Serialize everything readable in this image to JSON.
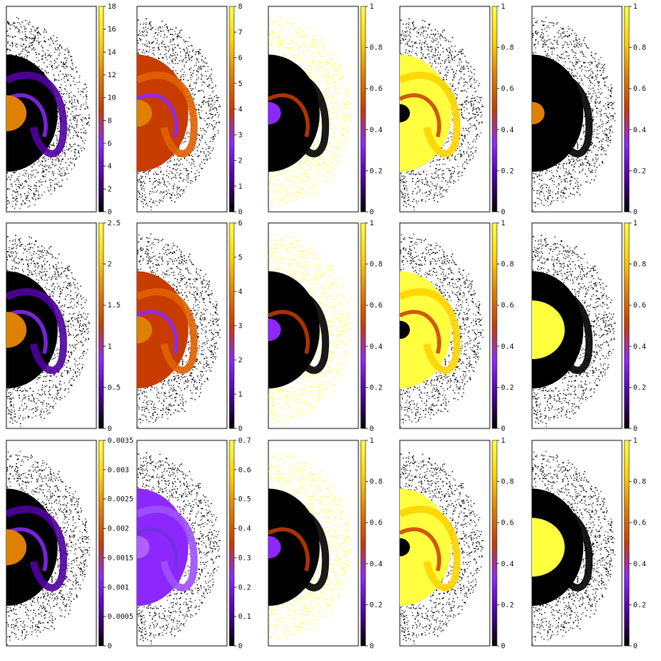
{
  "figure": {
    "rows": 3,
    "cols": 5,
    "colormap": [
      "#000000",
      "#5000a0",
      "#8c28ff",
      "#c83c00",
      "#e08000",
      "#ffd400",
      "#ffff40"
    ]
  },
  "chart_data": [
    {
      "type": "heatmap",
      "panel": "r1c1",
      "colorbar_ticks": [
        "0",
        "2",
        "4",
        "6",
        "8",
        "10",
        "12",
        "14",
        "16",
        "18"
      ],
      "colorbar_range": [
        0,
        18
      ],
      "pattern": "core"
    },
    {
      "type": "heatmap",
      "panel": "r1c2",
      "colorbar_ticks": [
        "0",
        "1",
        "2",
        "3",
        "4",
        "5",
        "6",
        "7",
        "8"
      ],
      "colorbar_range": [
        0,
        8
      ],
      "pattern": "orange-mass"
    },
    {
      "type": "heatmap",
      "panel": "r1c3",
      "colorbar_ticks": [
        "0",
        "0.2",
        "0.4",
        "0.6",
        "0.8",
        "1"
      ],
      "colorbar_range": [
        0,
        1
      ],
      "pattern": "yellow-shell"
    },
    {
      "type": "heatmap",
      "panel": "r1c4",
      "colorbar_ticks": [
        "0",
        "0.2",
        "0.4",
        "0.6",
        "0.8",
        "1"
      ],
      "colorbar_range": [
        0,
        1
      ],
      "pattern": "yellow-stream"
    },
    {
      "type": "heatmap",
      "panel": "r1c5",
      "colorbar_ticks": [
        "0",
        "0.2",
        "0.4",
        "0.6",
        "0.8",
        "1"
      ],
      "colorbar_range": [
        0,
        1
      ],
      "pattern": "dark-core"
    },
    {
      "type": "heatmap",
      "panel": "r2c1",
      "colorbar_ticks": [
        "0",
        "0.5",
        "1",
        "1.5",
        "2",
        "2.5"
      ],
      "colorbar_range": [
        0,
        2.5
      ],
      "pattern": "core"
    },
    {
      "type": "heatmap",
      "panel": "r2c2",
      "colorbar_ticks": [
        "0",
        "1",
        "2",
        "3",
        "4",
        "5",
        "6"
      ],
      "colorbar_range": [
        0,
        6
      ],
      "pattern": "orange-mass"
    },
    {
      "type": "heatmap",
      "panel": "r2c3",
      "colorbar_ticks": [
        "0",
        "0.2",
        "0.4",
        "0.6",
        "0.8",
        "1"
      ],
      "colorbar_range": [
        0,
        1
      ],
      "pattern": "yellow-shell"
    },
    {
      "type": "heatmap",
      "panel": "r2c4",
      "colorbar_ticks": [
        "0",
        "0.2",
        "0.4",
        "0.6",
        "0.8",
        "1"
      ],
      "colorbar_range": [
        0,
        1
      ],
      "pattern": "yellow-stream"
    },
    {
      "type": "heatmap",
      "panel": "r2c5",
      "colorbar_ticks": [
        "0",
        "0.2",
        "0.4",
        "0.6",
        "0.8",
        "1"
      ],
      "colorbar_range": [
        0,
        1
      ],
      "pattern": "yellow-core"
    },
    {
      "type": "heatmap",
      "panel": "r3c1",
      "colorbar_ticks": [
        "0",
        "0.0005",
        "0.001",
        "0.0015",
        "0.002",
        "0.0025",
        "0.003",
        "0.0035"
      ],
      "colorbar_range": [
        0,
        0.0035
      ],
      "pattern": "core"
    },
    {
      "type": "heatmap",
      "panel": "r3c2",
      "colorbar_ticks": [
        "0",
        "0.1",
        "0.2",
        "0.3",
        "0.4",
        "0.5",
        "0.6",
        "0.7"
      ],
      "colorbar_range": [
        0,
        0.7
      ],
      "pattern": "purple-mass"
    },
    {
      "type": "heatmap",
      "panel": "r3c3",
      "colorbar_ticks": [
        "0",
        "0.2",
        "0.4",
        "0.6",
        "0.8",
        "1"
      ],
      "colorbar_range": [
        0,
        1
      ],
      "pattern": "yellow-shell"
    },
    {
      "type": "heatmap",
      "panel": "r3c4",
      "colorbar_ticks": [
        "0",
        "0.2",
        "0.4",
        "0.6",
        "0.8",
        "1"
      ],
      "colorbar_range": [
        0,
        1
      ],
      "pattern": "yellow-stream"
    },
    {
      "type": "heatmap",
      "panel": "r3c5",
      "colorbar_ticks": [
        "0",
        "0.2",
        "0.4",
        "0.6",
        "0.8",
        "1"
      ],
      "colorbar_range": [
        0,
        1
      ],
      "pattern": "yellow-core"
    }
  ]
}
